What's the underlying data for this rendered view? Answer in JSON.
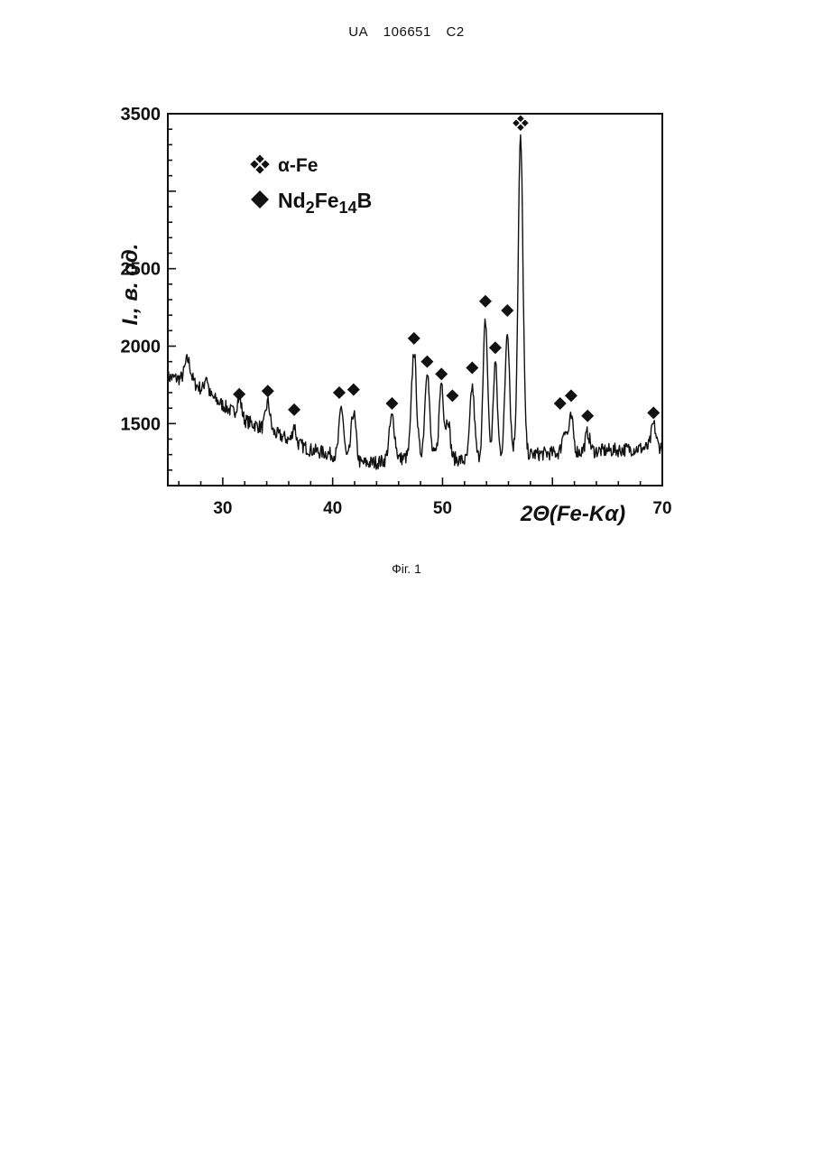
{
  "header": {
    "country": "UA",
    "number": "106651",
    "kind": "C2"
  },
  "figure_caption": "Фіг. 1",
  "chart_data": {
    "type": "line",
    "title": "",
    "xlabel": "2Θ(Fe-Kα)",
    "ylabel": "I., в. од.",
    "xlim": [
      25,
      70
    ],
    "ylim": [
      1100,
      3500
    ],
    "x_ticks": [
      30,
      40,
      50,
      70
    ],
    "y_ticks": [
      1500,
      2000,
      2500,
      3000,
      3500
    ],
    "y_tick_labels": [
      "1500",
      "2000",
      "2500",
      "",
      "3500"
    ],
    "grid": false,
    "legend_position": "top-left",
    "legend": [
      {
        "marker": "four-diamond-cluster",
        "label": "α-Fe"
      },
      {
        "marker": "diamond",
        "label": "Nd2Fe14B"
      }
    ],
    "baseline": [
      [
        25,
        1800
      ],
      [
        27,
        1780
      ],
      [
        30,
        1620
      ],
      [
        32,
        1520
      ],
      [
        35,
        1430
      ],
      [
        38,
        1330
      ],
      [
        40,
        1300
      ],
      [
        42,
        1240
      ],
      [
        44,
        1250
      ],
      [
        46,
        1270
      ],
      [
        48,
        1300
      ],
      [
        50,
        1290
      ],
      [
        52,
        1260
      ],
      [
        55,
        1300
      ],
      [
        57,
        1320
      ],
      [
        58,
        1300
      ],
      [
        60,
        1310
      ],
      [
        63,
        1320
      ],
      [
        66,
        1330
      ],
      [
        70,
        1350
      ]
    ],
    "peaks": [
      {
        "x": 26.8,
        "height": 130,
        "width": 0.25
      },
      {
        "x": 28.5,
        "height": 110,
        "width": 0.15
      },
      {
        "x": 31.5,
        "height": 120,
        "width": 0.2
      },
      {
        "x": 34.1,
        "height": 180,
        "width": 0.2
      },
      {
        "x": 36.5,
        "height": 110,
        "width": 0.15
      },
      {
        "x": 40.8,
        "height": 330,
        "width": 0.2
      },
      {
        "x": 41.9,
        "height": 330,
        "width": 0.22
      },
      {
        "x": 45.4,
        "height": 280,
        "width": 0.25
      },
      {
        "x": 47.4,
        "height": 680,
        "width": 0.22
      },
      {
        "x": 48.6,
        "height": 560,
        "width": 0.2
      },
      {
        "x": 49.9,
        "height": 480,
        "width": 0.2
      },
      {
        "x": 50.5,
        "height": 250,
        "width": 0.18
      },
      {
        "x": 52.7,
        "height": 470,
        "width": 0.2
      },
      {
        "x": 53.9,
        "height": 880,
        "width": 0.2
      },
      {
        "x": 54.8,
        "height": 600,
        "width": 0.18
      },
      {
        "x": 55.9,
        "height": 800,
        "width": 0.2
      },
      {
        "x": 57.1,
        "height": 2020,
        "width": 0.22
      },
      {
        "x": 61.1,
        "height": 150,
        "width": 0.2
      },
      {
        "x": 61.7,
        "height": 220,
        "width": 0.2
      },
      {
        "x": 63.2,
        "height": 120,
        "width": 0.2
      },
      {
        "x": 69.2,
        "height": 150,
        "width": 0.2
      }
    ],
    "markers": [
      {
        "type": "alpha-Fe",
        "x": 57.1,
        "y": 3440
      },
      {
        "type": "Nd2Fe14B",
        "x": 31.5,
        "y": 1690
      },
      {
        "type": "Nd2Fe14B",
        "x": 34.1,
        "y": 1710
      },
      {
        "type": "Nd2Fe14B",
        "x": 36.5,
        "y": 1590
      },
      {
        "type": "Nd2Fe14B",
        "x": 40.6,
        "y": 1700
      },
      {
        "type": "Nd2Fe14B",
        "x": 41.9,
        "y": 1720
      },
      {
        "type": "Nd2Fe14B",
        "x": 45.4,
        "y": 1630
      },
      {
        "type": "Nd2Fe14B",
        "x": 47.4,
        "y": 2050
      },
      {
        "type": "Nd2Fe14B",
        "x": 48.6,
        "y": 1900
      },
      {
        "type": "Nd2Fe14B",
        "x": 49.9,
        "y": 1820
      },
      {
        "type": "Nd2Fe14B",
        "x": 50.9,
        "y": 1680
      },
      {
        "type": "Nd2Fe14B",
        "x": 52.7,
        "y": 1860
      },
      {
        "type": "Nd2Fe14B",
        "x": 53.9,
        "y": 2290
      },
      {
        "type": "Nd2Fe14B",
        "x": 54.8,
        "y": 1990
      },
      {
        "type": "Nd2Fe14B",
        "x": 55.9,
        "y": 2230
      },
      {
        "type": "Nd2Fe14B",
        "x": 60.7,
        "y": 1630
      },
      {
        "type": "Nd2Fe14B",
        "x": 61.7,
        "y": 1680
      },
      {
        "type": "Nd2Fe14B",
        "x": 63.2,
        "y": 1550
      },
      {
        "type": "Nd2Fe14B",
        "x": 69.2,
        "y": 1570
      }
    ],
    "noise_amplitude": 45,
    "line_color": "#111111"
  }
}
